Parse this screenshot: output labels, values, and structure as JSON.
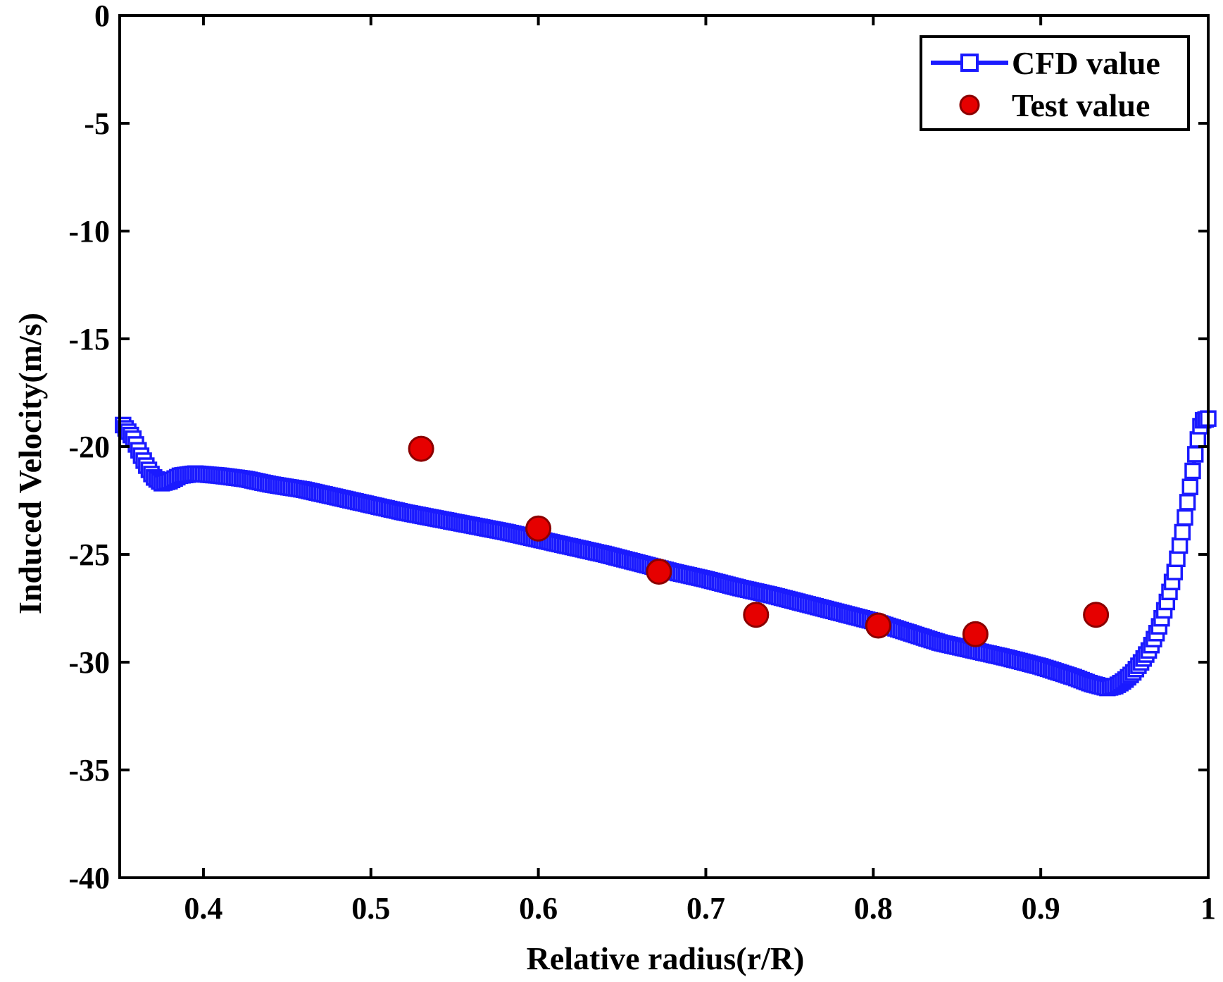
{
  "chart_data": {
    "type": "line",
    "title": "",
    "xlabel": "Relative radius(r/R)",
    "ylabel": "Induced Velocity(m/s)",
    "xlim": [
      0.35,
      1.0
    ],
    "ylim": [
      -40,
      0
    ],
    "xticks": [
      0.4,
      0.5,
      0.6,
      0.7,
      0.8,
      0.9,
      1.0
    ],
    "xtick_labels": [
      "0.4",
      "0.5",
      "0.6",
      "0.7",
      "0.8",
      "0.9",
      "1"
    ],
    "yticks": [
      0,
      -5,
      -10,
      -15,
      -20,
      -25,
      -30,
      -35,
      -40
    ],
    "ytick_labels": [
      "0",
      "-5",
      "-10",
      "-15",
      "-20",
      "-25",
      "-30",
      "-35",
      "-40"
    ],
    "grid": false,
    "legend_position": "top-right",
    "colors": {
      "cfd": "#1a1aff",
      "test": "#e60000",
      "test_edge": "#8b0000",
      "axis": "#000000"
    },
    "series": [
      {
        "name": "CFD value",
        "marker": "square",
        "curve_knots": {
          "x": [
            0.352,
            0.358,
            0.362,
            0.366,
            0.37,
            0.375,
            0.38,
            0.386,
            0.395,
            0.41,
            0.425,
            0.44,
            0.46,
            0.48,
            0.5,
            0.52,
            0.54,
            0.56,
            0.58,
            0.6,
            0.62,
            0.64,
            0.66,
            0.68,
            0.7,
            0.72,
            0.74,
            0.76,
            0.78,
            0.8,
            0.82,
            0.84,
            0.86,
            0.88,
            0.9,
            0.92,
            0.93,
            0.94,
            0.945,
            0.95,
            0.955,
            0.96,
            0.965,
            0.97,
            0.975,
            0.98,
            0.985,
            0.99,
            0.993,
            0.996,
            1.0
          ],
          "y": [
            -19.0,
            -19.6,
            -20.3,
            -20.9,
            -21.4,
            -21.7,
            -21.6,
            -21.35,
            -21.25,
            -21.35,
            -21.5,
            -21.75,
            -22.0,
            -22.35,
            -22.7,
            -23.05,
            -23.35,
            -23.65,
            -23.95,
            -24.3,
            -24.65,
            -25.0,
            -25.4,
            -25.8,
            -26.15,
            -26.55,
            -26.9,
            -27.3,
            -27.7,
            -28.1,
            -28.6,
            -29.1,
            -29.45,
            -29.8,
            -30.2,
            -30.7,
            -31.0,
            -31.2,
            -31.1,
            -30.85,
            -30.5,
            -30.0,
            -29.4,
            -28.5,
            -27.3,
            -25.8,
            -23.8,
            -21.5,
            -20.0,
            -18.8,
            -18.7
          ]
        }
      },
      {
        "name": "Test value",
        "marker": "circle",
        "x": [
          0.53,
          0.6,
          0.672,
          0.73,
          0.803,
          0.861,
          0.933
        ],
        "y": [
          -20.1,
          -23.8,
          -25.8,
          -27.8,
          -28.3,
          -28.7,
          -27.8
        ]
      }
    ]
  }
}
